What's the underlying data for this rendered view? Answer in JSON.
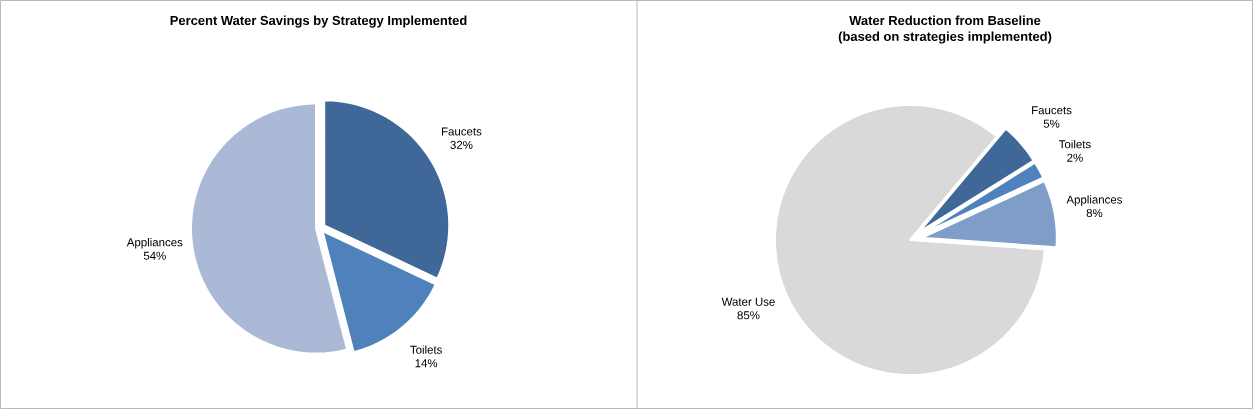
{
  "chart_data": [
    {
      "type": "pie",
      "title": "Percent Water Savings by Strategy Implemented",
      "categories": [
        "Faucets",
        "Toilets",
        "Appliances"
      ],
      "values": [
        32,
        14,
        54
      ],
      "colors": [
        "#3f6898",
        "#4f81bd",
        "#aab9d6"
      ],
      "value_labels": [
        "32%",
        "14%",
        "54%"
      ]
    },
    {
      "type": "pie",
      "title": "Water Reduction from Baseline",
      "subtitle": "(based on strategies implemented)",
      "categories": [
        "Faucets",
        "Toilets",
        "Appliances",
        "Water Use"
      ],
      "values": [
        5,
        2,
        8,
        85
      ],
      "colors": [
        "#3f6898",
        "#4f81bd",
        "#7f9dc9",
        "#d9d9d9"
      ],
      "value_labels": [
        "5%",
        "2%",
        "8%",
        "85%"
      ]
    }
  ]
}
